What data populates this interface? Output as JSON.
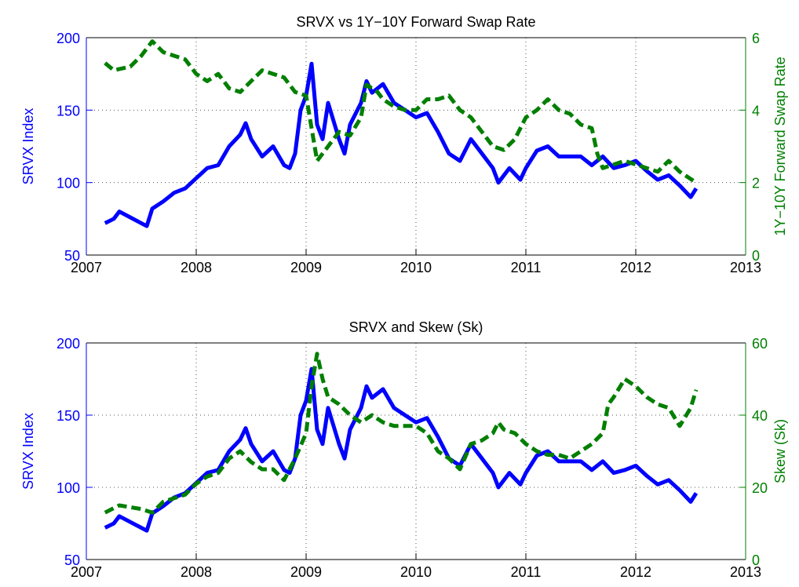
{
  "chart_data": [
    {
      "type": "line",
      "title": "SRVX vs 1Y−10Y Forward Swap Rate",
      "ylabel": "SRVX Index",
      "y2label": "1Y−10Y Forward Swap Rate",
      "xlim": [
        2007,
        2013
      ],
      "xticks": [
        2007,
        2008,
        2009,
        2010,
        2011,
        2012,
        2013
      ],
      "ylim": [
        50,
        200
      ],
      "yticks": [
        50,
        100,
        150,
        200
      ],
      "y2lim": [
        0,
        6
      ],
      "y2ticks": [
        0,
        2,
        4,
        6
      ],
      "grid": true,
      "series": [
        {
          "color": "#0000ff",
          "linestyle": "solid",
          "axis": "y",
          "x": [
            2007.17,
            2007.25,
            2007.3,
            2007.4,
            2007.5,
            2007.55,
            2007.6,
            2007.7,
            2007.8,
            2007.9,
            2008.0,
            2008.1,
            2008.2,
            2008.3,
            2008.4,
            2008.45,
            2008.5,
            2008.6,
            2008.7,
            2008.8,
            2008.85,
            2008.9,
            2008.95,
            2009.0,
            2009.05,
            2009.1,
            2009.15,
            2009.2,
            2009.3,
            2009.35,
            2009.4,
            2009.5,
            2009.55,
            2009.6,
            2009.7,
            2009.8,
            2009.9,
            2010.0,
            2010.1,
            2010.2,
            2010.3,
            2010.4,
            2010.5,
            2010.6,
            2010.7,
            2010.75,
            2010.85,
            2010.95,
            2011.0,
            2011.1,
            2011.2,
            2011.3,
            2011.5,
            2011.6,
            2011.7,
            2011.8,
            2011.9,
            2012.0,
            2012.1,
            2012.2,
            2012.3,
            2012.4,
            2012.5,
            2012.55
          ],
          "values": [
            72,
            75,
            80,
            76,
            72,
            70,
            82,
            87,
            93,
            96,
            103,
            110,
            112,
            125,
            133,
            141,
            130,
            118,
            125,
            112,
            110,
            120,
            150,
            160,
            182,
            140,
            130,
            155,
            130,
            120,
            140,
            155,
            170,
            162,
            168,
            155,
            150,
            145,
            148,
            135,
            120,
            115,
            130,
            120,
            110,
            100,
            110,
            102,
            110,
            122,
            125,
            118,
            118,
            112,
            118,
            110,
            112,
            115,
            108,
            102,
            105,
            98,
            90,
            96
          ]
        },
        {
          "color": "#007f00",
          "linestyle": "dashed",
          "axis": "y2",
          "x": [
            2007.17,
            2007.25,
            2007.4,
            2007.5,
            2007.6,
            2007.7,
            2007.8,
            2007.9,
            2008.0,
            2008.1,
            2008.2,
            2008.3,
            2008.4,
            2008.5,
            2008.6,
            2008.7,
            2008.8,
            2008.9,
            2009.0,
            2009.05,
            2009.1,
            2009.2,
            2009.3,
            2009.4,
            2009.5,
            2009.55,
            2009.65,
            2009.7,
            2009.8,
            2009.9,
            2010.0,
            2010.1,
            2010.2,
            2010.3,
            2010.4,
            2010.5,
            2010.6,
            2010.7,
            2010.8,
            2010.9,
            2011.0,
            2011.1,
            2011.2,
            2011.3,
            2011.4,
            2011.5,
            2011.6,
            2011.65,
            2011.7,
            2011.8,
            2011.9,
            2012.0,
            2012.1,
            2012.2,
            2012.3,
            2012.4,
            2012.5,
            2012.55
          ],
          "values": [
            5.3,
            5.1,
            5.2,
            5.5,
            5.9,
            5.6,
            5.5,
            5.4,
            5.0,
            4.8,
            5.0,
            4.6,
            4.5,
            4.8,
            5.1,
            5.0,
            4.9,
            4.5,
            4.4,
            3.5,
            2.6,
            3.0,
            3.4,
            3.3,
            3.8,
            4.7,
            4.5,
            4.3,
            4.1,
            4.0,
            4.0,
            4.3,
            4.3,
            4.4,
            4.0,
            3.8,
            3.4,
            3.0,
            2.9,
            3.2,
            3.8,
            4.0,
            4.3,
            4.0,
            3.9,
            3.6,
            3.5,
            2.8,
            2.4,
            2.5,
            2.6,
            2.5,
            2.4,
            2.3,
            2.6,
            2.3,
            2.1,
            2.0
          ]
        }
      ]
    },
    {
      "type": "line",
      "title": "SRVX and Skew (Sk)",
      "ylabel": "SRVX Index",
      "y2label": "Skew (Sk)",
      "xlim": [
        2007,
        2013
      ],
      "xticks": [
        2007,
        2008,
        2009,
        2010,
        2011,
        2012,
        2013
      ],
      "ylim": [
        50,
        200
      ],
      "yticks": [
        50,
        100,
        150,
        200
      ],
      "y2lim": [
        0,
        60
      ],
      "y2ticks": [
        0,
        20,
        40,
        60
      ],
      "grid": true,
      "series": [
        {
          "color": "#0000ff",
          "linestyle": "solid",
          "axis": "y",
          "x": [
            2007.17,
            2007.25,
            2007.3,
            2007.4,
            2007.5,
            2007.55,
            2007.6,
            2007.7,
            2007.8,
            2007.9,
            2008.0,
            2008.1,
            2008.2,
            2008.3,
            2008.4,
            2008.45,
            2008.5,
            2008.6,
            2008.7,
            2008.8,
            2008.85,
            2008.9,
            2008.95,
            2009.0,
            2009.05,
            2009.1,
            2009.15,
            2009.2,
            2009.3,
            2009.35,
            2009.4,
            2009.5,
            2009.55,
            2009.6,
            2009.7,
            2009.8,
            2009.9,
            2010.0,
            2010.1,
            2010.2,
            2010.3,
            2010.4,
            2010.5,
            2010.6,
            2010.7,
            2010.75,
            2010.85,
            2010.95,
            2011.0,
            2011.1,
            2011.2,
            2011.3,
            2011.5,
            2011.6,
            2011.7,
            2011.8,
            2011.9,
            2012.0,
            2012.1,
            2012.2,
            2012.3,
            2012.4,
            2012.5,
            2012.55
          ],
          "values": [
            72,
            75,
            80,
            76,
            72,
            70,
            82,
            87,
            93,
            96,
            103,
            110,
            112,
            125,
            133,
            141,
            130,
            118,
            125,
            112,
            110,
            120,
            150,
            160,
            182,
            140,
            130,
            155,
            130,
            120,
            140,
            155,
            170,
            162,
            168,
            155,
            150,
            145,
            148,
            135,
            120,
            115,
            130,
            120,
            110,
            100,
            110,
            102,
            110,
            122,
            125,
            118,
            118,
            112,
            118,
            110,
            112,
            115,
            108,
            102,
            105,
            98,
            90,
            96
          ]
        },
        {
          "color": "#007f00",
          "linestyle": "dashed",
          "axis": "y2",
          "x": [
            2007.17,
            2007.3,
            2007.5,
            2007.6,
            2007.7,
            2007.8,
            2007.9,
            2008.0,
            2008.1,
            2008.2,
            2008.3,
            2008.4,
            2008.5,
            2008.6,
            2008.7,
            2008.8,
            2008.9,
            2009.0,
            2009.05,
            2009.1,
            2009.15,
            2009.2,
            2009.3,
            2009.4,
            2009.5,
            2009.6,
            2009.7,
            2009.8,
            2009.9,
            2010.0,
            2010.1,
            2010.2,
            2010.3,
            2010.4,
            2010.5,
            2010.6,
            2010.7,
            2010.75,
            2010.8,
            2010.9,
            2011.0,
            2011.1,
            2011.2,
            2011.3,
            2011.4,
            2011.5,
            2011.6,
            2011.7,
            2011.75,
            2011.8,
            2011.9,
            2012.0,
            2012.1,
            2012.2,
            2012.3,
            2012.4,
            2012.5,
            2012.55
          ],
          "values": [
            13,
            15,
            14,
            13,
            16,
            17,
            18,
            21,
            23,
            24,
            28,
            30,
            27,
            25,
            25,
            22,
            28,
            35,
            48,
            57,
            50,
            45,
            43,
            40,
            38,
            40,
            38,
            37,
            37,
            37,
            35,
            30,
            28,
            25,
            32,
            33,
            35,
            38,
            36,
            35,
            32,
            30,
            29,
            29,
            28,
            30,
            32,
            35,
            43,
            45,
            50,
            48,
            45,
            43,
            42,
            37,
            42,
            47
          ]
        }
      ]
    }
  ]
}
